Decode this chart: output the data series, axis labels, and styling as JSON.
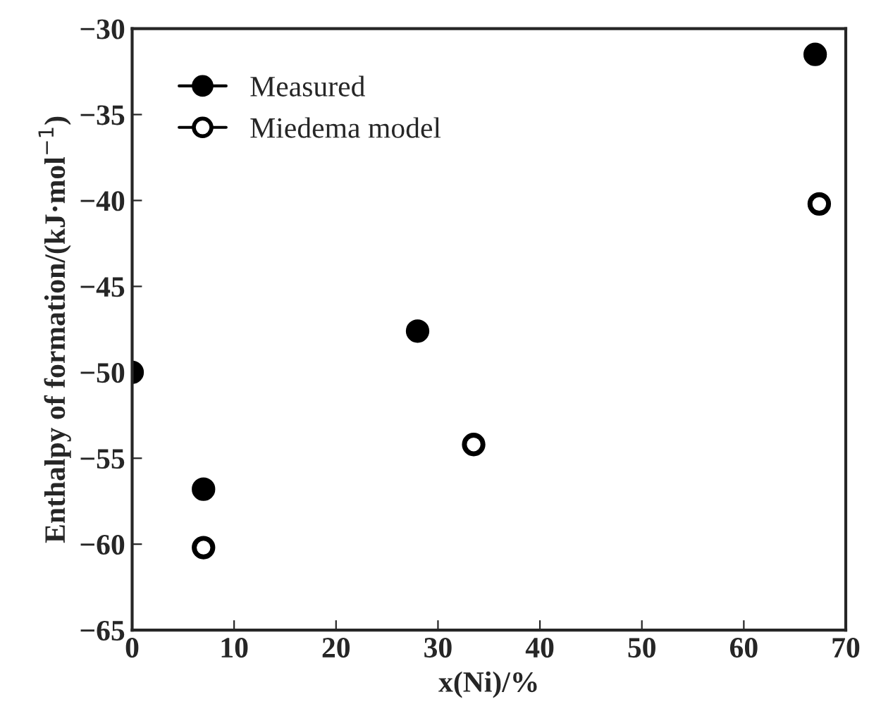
{
  "chart_data": {
    "type": "scatter",
    "xlabel": "x(Ni)/%",
    "ylabel": "Enthalpy of formation/(kJ·mol$^{−1}$)",
    "xlim": [
      0,
      70
    ],
    "xticks": [
      0,
      10,
      20,
      30,
      40,
      50,
      60,
      70
    ],
    "ylim": [
      -65,
      -30
    ],
    "yticks": [
      {
        "value": -65,
        "label": "−65"
      },
      {
        "value": -60,
        "label": "−60"
      },
      {
        "value": -55,
        "label": "−55"
      },
      {
        "value": -50,
        "label": "−50"
      },
      {
        "value": -45,
        "label": "−45"
      },
      {
        "value": -40,
        "label": "−40"
      },
      {
        "value": -35,
        "label": "−35"
      },
      {
        "value": -30,
        "label": "−30"
      }
    ],
    "grid": false,
    "legend": "top left",
    "marker": "circle",
    "series": [
      {
        "name": "Measured",
        "color": "#000000",
        "x": [
          0,
          7,
          28,
          67
        ],
        "values": [
          -50,
          -56.8,
          -47.6,
          -31.5
        ]
      },
      {
        "name": "Miedema model",
        "color": "#000000",
        "x": [
          7,
          33.5,
          67.4
        ],
        "values": [
          -60.2,
          -54.2,
          -40.2
        ]
      }
    ]
  }
}
